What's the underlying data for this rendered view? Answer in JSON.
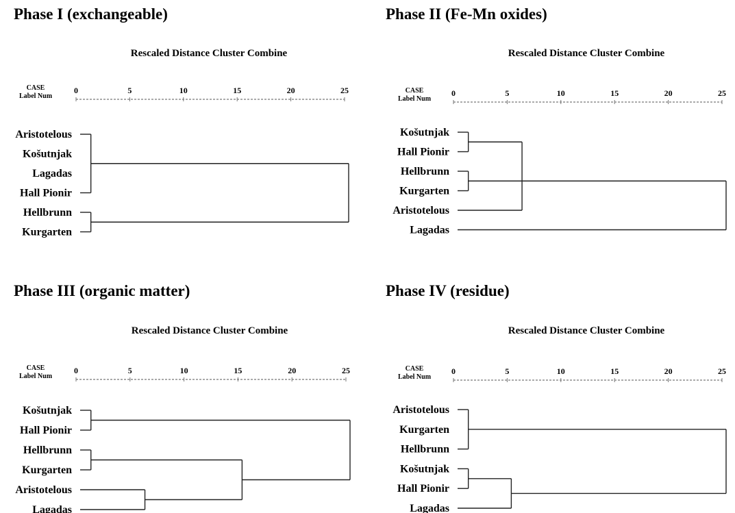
{
  "chart_data": [
    {
      "type": "dendrogram",
      "title": "Phase I (exchangeable)",
      "subtitle": "Rescaled Distance Cluster Combine",
      "header_case": "CASE",
      "header_label_num": "Label  Num",
      "ticks": [
        "0",
        "5",
        "10",
        "15",
        "20",
        "25"
      ],
      "xlim": [
        0,
        25
      ],
      "leaves": [
        "Aristotelous",
        "Košutnjak",
        "Lagadas",
        "Hall Pionir",
        "Hellbrunn",
        "Kurgarten"
      ],
      "merges": [
        {
          "a": "L0",
          "b": "L3",
          "height": 1
        },
        {
          "a": "L4",
          "b": "L5",
          "height": 1
        },
        {
          "a": "M0",
          "b": "M1",
          "height": 25
        }
      ]
    },
    {
      "type": "dendrogram",
      "title": "Phase II (Fe-Mn oxides)",
      "subtitle": "Rescaled Distance Cluster Combine",
      "header_case": "CASE",
      "header_label_num": "Label  Num",
      "ticks": [
        "0",
        "5",
        "10",
        "15",
        "20",
        "25"
      ],
      "xlim": [
        0,
        25
      ],
      "leaves": [
        "Košutnjak",
        "Hall Pionir",
        "Hellbrunn",
        "Kurgarten",
        "Aristotelous",
        "Lagadas"
      ],
      "merges": [
        {
          "a": "L0",
          "b": "L1",
          "height": 1
        },
        {
          "a": "L2",
          "b": "L3",
          "height": 1
        },
        {
          "a": "M0",
          "b": "L4",
          "height": 6
        },
        {
          "a": "M1",
          "b": "L5",
          "height": 25
        }
      ]
    },
    {
      "type": "dendrogram",
      "title": "Phase III (organic matter)",
      "subtitle": "Rescaled Distance Cluster Combine",
      "header_case": "CASE",
      "header_label_num": "Label  Num",
      "ticks": [
        "0",
        "5",
        "10",
        "15",
        "20",
        "25"
      ],
      "xlim": [
        0,
        25
      ],
      "leaves": [
        "Košutnjak",
        "Hall Pionir",
        "Hellbrunn",
        "Kurgarten",
        "Aristotelous",
        "Lagadas"
      ],
      "merges": [
        {
          "a": "L0",
          "b": "L1",
          "height": 1
        },
        {
          "a": "L2",
          "b": "L3",
          "height": 1
        },
        {
          "a": "L4",
          "b": "L5",
          "height": 6
        },
        {
          "a": "M1",
          "b": "M2",
          "height": 15
        },
        {
          "a": "M0",
          "b": "M3",
          "height": 25
        }
      ]
    },
    {
      "type": "dendrogram",
      "title": "Phase IV (residue)",
      "subtitle": "Rescaled Distance Cluster Combine",
      "header_case": "CASE",
      "header_label_num": "Label  Num",
      "ticks": [
        "0",
        "5",
        "10",
        "15",
        "20",
        "25"
      ],
      "xlim": [
        0,
        25
      ],
      "leaves": [
        "Aristotelous",
        "Kurgarten",
        "Hellbrunn",
        "Košutnjak",
        "Hall Pionir",
        "Lagadas"
      ],
      "merges": [
        {
          "a": "L0",
          "b": "L2",
          "height": 1
        },
        {
          "a": "L3",
          "b": "L4",
          "height": 1
        },
        {
          "a": "M1",
          "b": "L5",
          "height": 5
        },
        {
          "a": "M0",
          "b": "M2",
          "height": 25
        }
      ]
    }
  ]
}
